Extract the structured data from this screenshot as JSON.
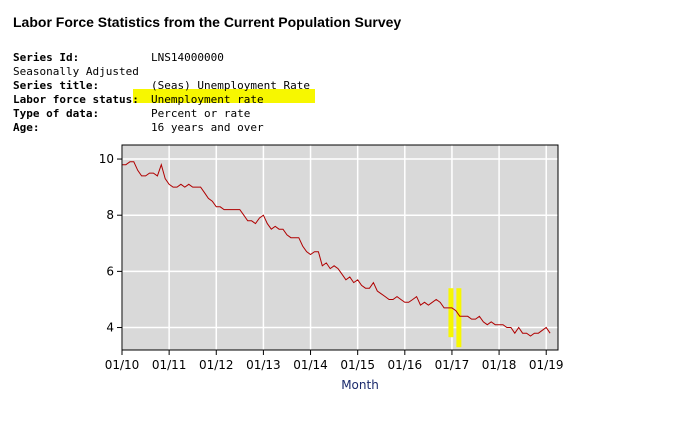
{
  "page": {
    "title": "Labor Force Statistics from the Current Population Survey"
  },
  "meta": {
    "series_id_label": "Series Id:",
    "series_id_value": "LNS14000000",
    "seasonal": "Seasonally Adjusted",
    "series_title_label": "Series title:",
    "series_title_value": "(Seas) Unemployment Rate",
    "status_label": "Labor force status:",
    "status_value": "Unemployment rate",
    "type_label": "Type of data:",
    "type_value": "Percent or rate",
    "age_label": "Age:",
    "age_value": "16 years and over"
  },
  "colors": {
    "plot_bg": "#d9d9d9",
    "grid": "#ffffff",
    "line": "#b00000",
    "highlight": "#f7f700",
    "axis_label": "#1a2a6c"
  },
  "chart_data": {
    "type": "line",
    "title": "",
    "xlabel": "Month",
    "ylabel": "",
    "x_ticks": [
      "01/10",
      "01/11",
      "01/12",
      "01/13",
      "01/14",
      "01/15",
      "01/16",
      "01/17",
      "01/18",
      "01/19"
    ],
    "y_ticks": [
      4,
      6,
      8,
      10
    ],
    "xlim": [
      0,
      111
    ],
    "ylim": [
      3.2,
      10.5
    ],
    "grid": true,
    "start": "2010-01",
    "series": [
      {
        "name": "(Seas) Unemployment Rate",
        "values": [
          9.8,
          9.8,
          9.9,
          9.9,
          9.6,
          9.4,
          9.4,
          9.5,
          9.5,
          9.4,
          9.8,
          9.3,
          9.1,
          9.0,
          9.0,
          9.1,
          9.0,
          9.1,
          9.0,
          9.0,
          9.0,
          8.8,
          8.6,
          8.5,
          8.3,
          8.3,
          8.2,
          8.2,
          8.2,
          8.2,
          8.2,
          8.0,
          7.8,
          7.8,
          7.7,
          7.9,
          8.0,
          7.7,
          7.5,
          7.6,
          7.5,
          7.5,
          7.3,
          7.2,
          7.2,
          7.2,
          6.9,
          6.7,
          6.6,
          6.7,
          6.7,
          6.2,
          6.3,
          6.1,
          6.2,
          6.1,
          5.9,
          5.7,
          5.8,
          5.6,
          5.7,
          5.5,
          5.4,
          5.4,
          5.6,
          5.3,
          5.2,
          5.1,
          5.0,
          5.0,
          5.1,
          5.0,
          4.9,
          4.9,
          5.0,
          5.1,
          4.8,
          4.9,
          4.8,
          4.9,
          5.0,
          4.9,
          4.7,
          4.7,
          4.7,
          4.6,
          4.4,
          4.4,
          4.4,
          4.3,
          4.3,
          4.4,
          4.2,
          4.1,
          4.2,
          4.1,
          4.1,
          4.1,
          4.0,
          4.0,
          3.8,
          4.0,
          3.8,
          3.8,
          3.7,
          3.8,
          3.8,
          3.9,
          4.0,
          3.8
        ]
      }
    ],
    "highlight": {
      "note": "marker around 01/17",
      "x_from": 84,
      "x_to": 85,
      "y_from": 3.3,
      "y_to": 5.4
    }
  }
}
